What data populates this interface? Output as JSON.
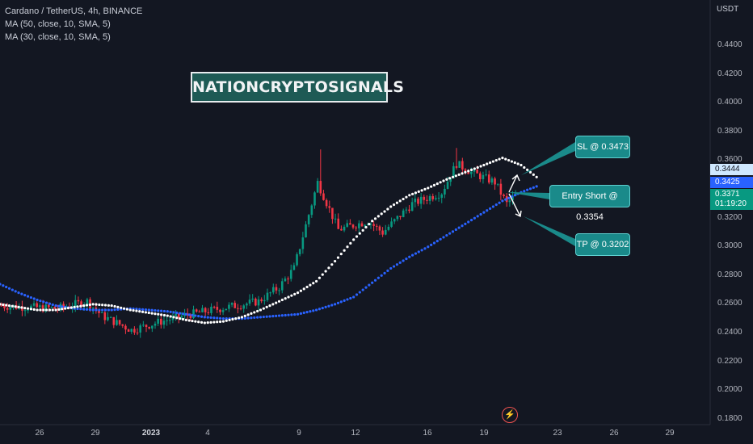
{
  "legend": {
    "symbol": "Cardano / TetherUS, 4h, BINANCE",
    "ma1": "MA (50, close, 10, SMA, 5)",
    "ma2": "MA (30, close, 10, SMA, 5)"
  },
  "watermark": "NATIONCRYPTOSIGNALS",
  "callouts": {
    "sl": "SL @ 0.3473",
    "entry": "Entry Short @ 0.3354",
    "tp": "TP @ 0.3202"
  },
  "axis": {
    "currency": "USDT",
    "y_ticks": [
      "0.4400",
      "0.4200",
      "0.4000",
      "0.3800",
      "0.3600",
      "0.3200",
      "0.3000",
      "0.2800",
      "0.2600",
      "0.2400",
      "0.2200",
      "0.2000",
      "0.1800"
    ],
    "x_ticks": [
      "26",
      "29",
      "2023",
      "4",
      "9",
      "12",
      "16",
      "19",
      "23",
      "26",
      "29"
    ]
  },
  "price_tags": {
    "sl_line": "0.3444",
    "ma": "0.3425",
    "last_price": "0.3371",
    "countdown": "01:19:20"
  },
  "colors": {
    "background": "#131722",
    "up": "#089981",
    "down": "#f23645",
    "ma_white": "#ffffff",
    "ma_blue": "#2962ff",
    "callout": "#1a8a8a"
  },
  "chart_data": {
    "type": "candlestick",
    "ylim": [
      0.18,
      0.45
    ],
    "grid": false,
    "series": [
      {
        "name": "MA (50, close, 10, SMA, 5)",
        "color": "#2962ff",
        "values": [
          0.274,
          0.268,
          0.263,
          0.259,
          0.257,
          0.256,
          0.256,
          0.257,
          0.256,
          0.255,
          0.253,
          0.251,
          0.25,
          0.25,
          0.251,
          0.252,
          0.253,
          0.256,
          0.26,
          0.265,
          0.275,
          0.285,
          0.293,
          0.3,
          0.308,
          0.316,
          0.324,
          0.332,
          0.338,
          0.343
        ]
      },
      {
        "name": "MA (30, close, 10, SMA, 5)",
        "color": "#ffffff",
        "values": [
          0.26,
          0.258,
          0.256,
          0.256,
          0.258,
          0.26,
          0.259,
          0.256,
          0.254,
          0.252,
          0.249,
          0.247,
          0.248,
          0.251,
          0.256,
          0.262,
          0.268,
          0.276,
          0.29,
          0.305,
          0.318,
          0.328,
          0.336,
          0.341,
          0.347,
          0.352,
          0.357,
          0.362,
          0.357,
          0.347
        ]
      }
    ]
  }
}
